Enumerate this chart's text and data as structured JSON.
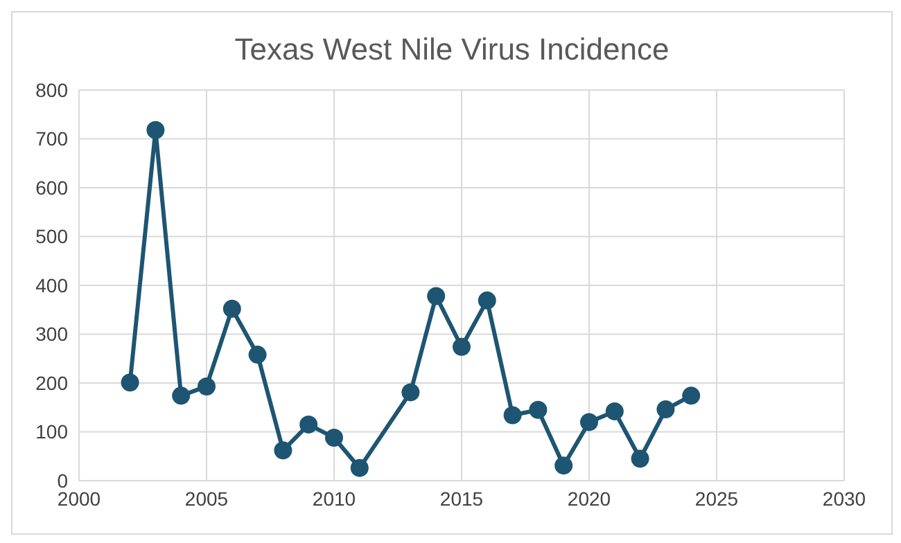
{
  "chart_data": {
    "type": "line",
    "title": "Texas West Nile Virus Incidence",
    "x": [
      2002,
      2003,
      2004,
      2005,
      2006,
      2007,
      2008,
      2009,
      2010,
      2011,
      2013,
      2014,
      2015,
      2016,
      2017,
      2018,
      2019,
      2020,
      2021,
      2022,
      2023,
      2024
    ],
    "series": [
      {
        "color": "#1d5572",
        "values": [
          201,
          718,
          174,
          193,
          352,
          258,
          62,
          115,
          88,
          26,
          181,
          378,
          274,
          369,
          134,
          145,
          31,
          120,
          142,
          45,
          146,
          174
        ]
      }
    ],
    "xlim": [
      2000,
      2030
    ],
    "xticks": [
      2000,
      2005,
      2010,
      2015,
      2020,
      2025,
      2030
    ],
    "ylim": [
      0,
      800
    ],
    "yticks": [
      0,
      100,
      200,
      300,
      400,
      500,
      600,
      700,
      800
    ],
    "grid": true,
    "marker": "circle",
    "line_style": "solid"
  }
}
